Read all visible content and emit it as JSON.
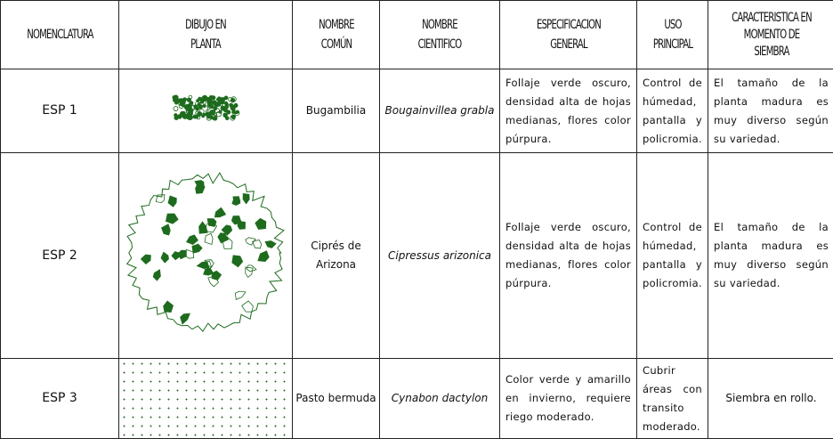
{
  "headers": [
    "NOMENCLATURA",
    "DIBUJO EN PLANTA",
    "NOMBRE COMÚN",
    "NOMBRE CIENTIFICO",
    "ESPECIFICACION GENERAL",
    "USO PRINCIPAL",
    "CARACTERISTICA EN MOMENTO DE SIEMBRA"
  ],
  "rows": [
    {
      "code": "ESP 1",
      "drawing": "shrub-cluster",
      "common": "Bugambilia",
      "scientific": "Bougainvillea grabla",
      "spec": "Follaje verde oscuro, densidad alta de hojas medianas, flores color púrpura.",
      "use": "Control de húmedad, pantalla y policromia.",
      "feature": "El tamaño de la planta madura es muy diverso según su variedad."
    },
    {
      "code": "ESP 2",
      "drawing": "tree-canopy",
      "common": "Ciprés de Arizona",
      "scientific": "Cipressus arizonica",
      "spec": "Follaje verde oscuro, densidad alta de hojas medianas, flores color púrpura.",
      "use": "Control de húmedad, pantalla y policromia.",
      "feature": "El tamaño de la planta madura es muy diverso según su variedad."
    },
    {
      "code": "ESP 3",
      "drawing": "grass-dots",
      "common": "Pasto bermuda",
      "scientific": "Cynabon dactylon",
      "spec": "Color verde y amarillo en invierno, requiere riego moderado.",
      "use": "Cubrir áreas con transito moderado.",
      "feature": "Siembra en rollo."
    }
  ],
  "colors": {
    "plant": "#1e6b1e",
    "border": "#222222"
  }
}
